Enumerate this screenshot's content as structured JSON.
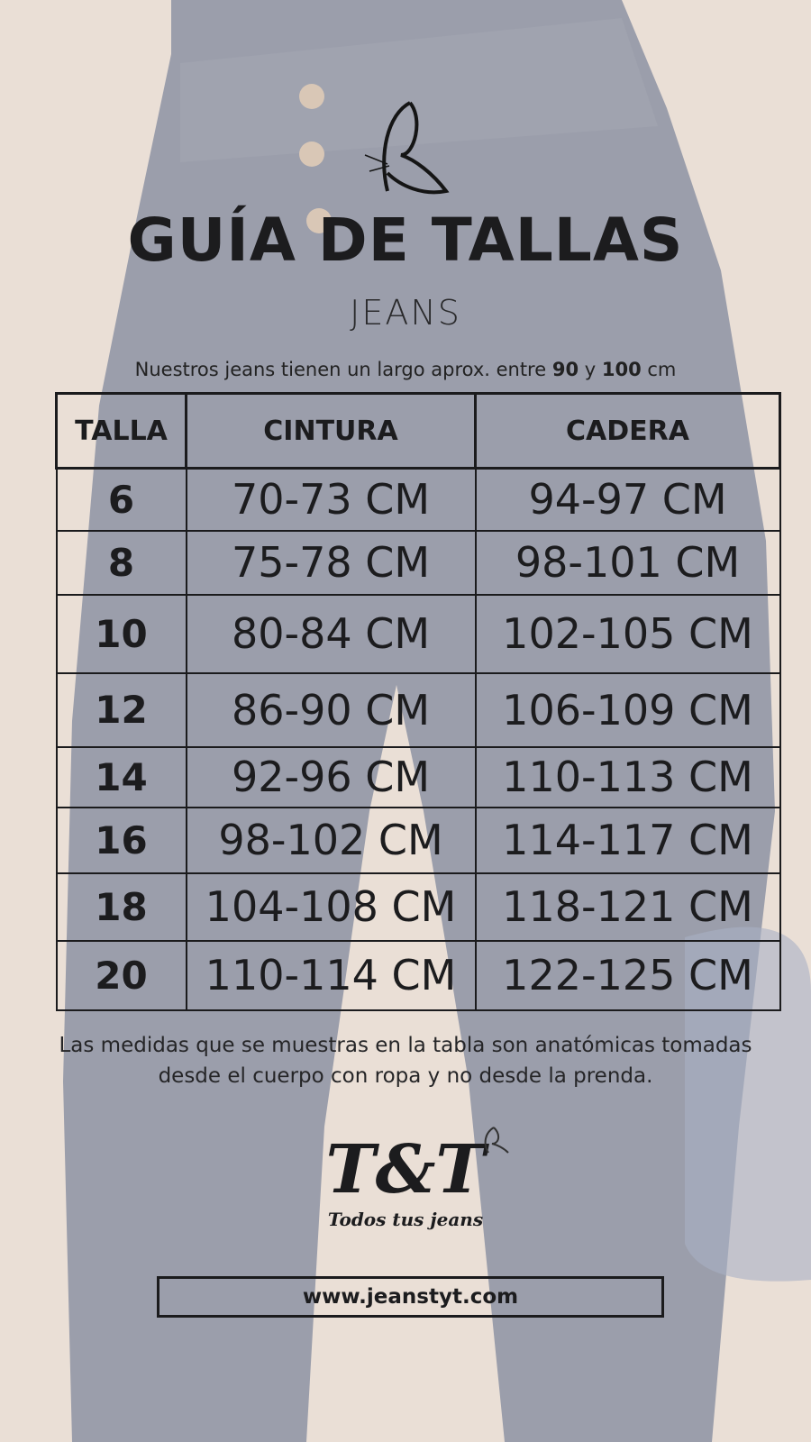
{
  "header": {
    "title": "GUÍA DE TALLAS",
    "subtitle": "JEANS",
    "note_prefix": "Nuestros jeans tienen un largo aprox. entre ",
    "note_min": "90",
    "note_mid": " y ",
    "note_max": "100",
    "note_suffix": " cm"
  },
  "table": {
    "headers": [
      "TALLA",
      "CINTURA",
      "CADERA"
    ],
    "rows": [
      [
        "6",
        "70-73 CM",
        "94-97 CM"
      ],
      [
        "8",
        "75-78 CM",
        "98-101 CM"
      ],
      [
        "10",
        "80-84 CM",
        "102-105 CM"
      ],
      [
        "12",
        "86-90 CM",
        "106-109 CM"
      ],
      [
        "14",
        "92-96 CM",
        "110-113 CM"
      ],
      [
        "16",
        "98-102 CM",
        "114-117 CM"
      ],
      [
        "18",
        "104-108 CM",
        "118-121 CM"
      ],
      [
        "20",
        "110-114 CM",
        "122-125 CM"
      ]
    ]
  },
  "footer": {
    "disclaimer": "Las medidas que se muestras en la tabla son anatómicas tomadas desde el cuerpo con ropa  y no desde la prenda.",
    "logo_text": "T&T",
    "tagline": "Todos tus jeans",
    "website": "www.jeanstyt.com"
  },
  "colors": {
    "text": "#1c1c1e",
    "background": "#eadfd6",
    "denim": "#9a9ca8"
  },
  "icons": [
    "butterfly-icon"
  ]
}
